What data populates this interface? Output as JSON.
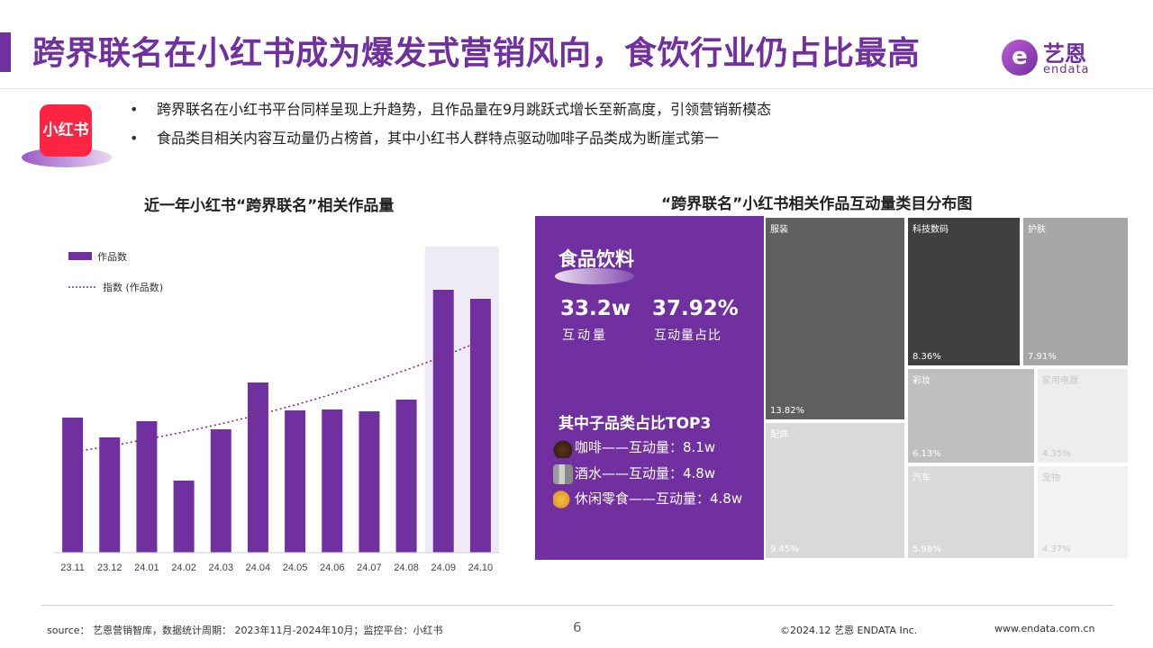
{
  "header": {
    "title": "跨界联名在小红书成为爆发式营销风向，食饮行业仍占比最高",
    "logo_cn": "艺恩",
    "logo_en": "endata"
  },
  "app_icon_label": "小红书",
  "bullets": [
    "跨界联名在小红书平台同样呈现上升趋势，且作品量在9月跳跃式增长至新高度，引领营销新模态",
    "食品类目相关内容互动量仍占榜首，其中小红书人群特点驱动咖啡子品类成为断崖式第一"
  ],
  "left_chart": {
    "title": "近一年小红书“跨界联名”相关作品量"
  },
  "right_chart": {
    "title": "“跨界联名”小红书相关作品互动量类目分布图",
    "food": {
      "label": "食品饮料",
      "stat1_value": "33.2w",
      "stat1_label": "互动量",
      "stat2_value": "37.92%",
      "stat2_label": "互动量占比",
      "sub_title": "其中子品类占比TOP3",
      "sub_items": [
        "咖啡——互动量：8.1w",
        "酒水——互动量：4.8w",
        "休闲零食——互动量：4.8w"
      ]
    },
    "cells": [
      {
        "label": "服装",
        "pct": "13.82%"
      },
      {
        "label": "科技数码",
        "pct": "8.36%"
      },
      {
        "label": "护肤",
        "pct": "7.91%"
      },
      {
        "label": "配饰",
        "pct": "9.45%"
      },
      {
        "label": "彩妆",
        "pct": "6.13%"
      },
      {
        "label": "家用电器",
        "pct": "4.35%"
      },
      {
        "label": "汽车",
        "pct": "5.98%"
      },
      {
        "label": "宠物",
        "pct": "4.37%"
      }
    ]
  },
  "chart_data": [
    {
      "type": "bar",
      "title": "近一年小红书“跨界联名”相关作品量",
      "categories": [
        "23.11",
        "23.12",
        "24.01",
        "24.02",
        "24.03",
        "24.04",
        "24.05",
        "24.06",
        "24.07",
        "24.08",
        "24.09",
        "24.10"
      ],
      "series": [
        {
          "name": "作品数",
          "type": "bar",
          "values": [
            150,
            128,
            146,
            80,
            137,
            189,
            158,
            159,
            157,
            170,
            292,
            282
          ]
        },
        {
          "name": "指数 (作品数)",
          "type": "line",
          "style": "dotted",
          "values": [
            112,
            118,
            126,
            134,
            143,
            153,
            164,
            176,
            189,
            203,
            218,
            235
          ]
        }
      ],
      "ylim": [
        0,
        340
      ],
      "highlight_categories": [
        "24.09",
        "24.10"
      ],
      "legend": "top-left",
      "colors": {
        "bar": "#7030a0",
        "trend": "#8b2a6e",
        "highlight": "#efebf5"
      }
    },
    {
      "type": "treemap",
      "title": "“跨界联名”小红书相关作品互动量类目分布图",
      "items": [
        {
          "name": "食品饮料",
          "value": 37.92
        },
        {
          "name": "服装",
          "value": 13.82
        },
        {
          "name": "配饰",
          "value": 9.45
        },
        {
          "name": "科技数码",
          "value": 8.36
        },
        {
          "name": "护肤",
          "value": 7.91
        },
        {
          "name": "彩妆",
          "value": 6.13
        },
        {
          "name": "汽车",
          "value": 5.98
        },
        {
          "name": "宠物",
          "value": 4.37
        },
        {
          "name": "家用电器",
          "value": 4.35
        }
      ]
    }
  ],
  "footer": {
    "source": "source： 艺恩营销智库，数据统计周期： 2023年11月-2024年10月；监控平台：小红书",
    "page": "6",
    "copyright": "©2024.12 艺恩 ENDATA Inc.",
    "website": "www.endata.com.cn"
  }
}
